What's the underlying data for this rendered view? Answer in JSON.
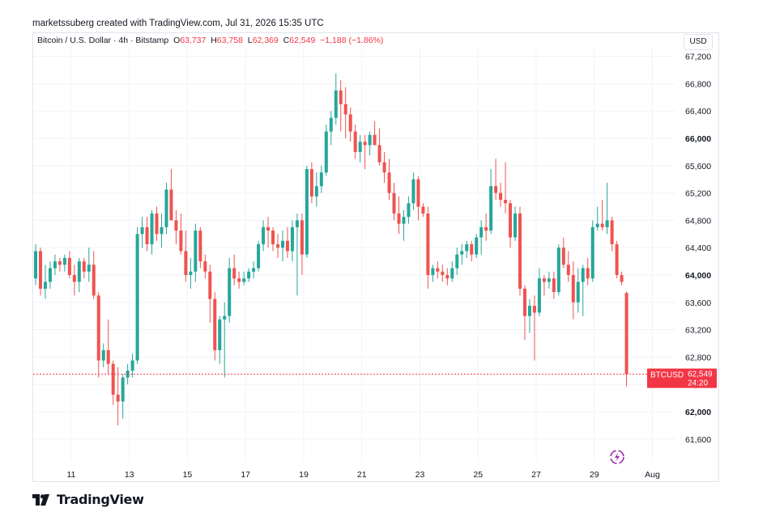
{
  "credit_line": "marketssuberg created with TradingView.com, Jul 31, 2026 15:35 UTC",
  "legend": {
    "symbol_desc": "Bitcoin / U.S. Dollar · 4h · Bitstamp",
    "o_label": "O",
    "o_value": "63,737",
    "h_label": "H",
    "h_value": "63,758",
    "l_label": "L",
    "l_value": "62,369",
    "c_label": "C",
    "c_value": "62,549",
    "change": "−1,188 (−1.86%)"
  },
  "currency_button": "USD",
  "brand": {
    "name": "TradingView",
    "icon": "tradingview-logo-icon"
  },
  "colors": {
    "up": "#26a69a",
    "down": "#ef5350",
    "price_tag": "#f23645",
    "grid": "#f0f3fa",
    "text": "#131722"
  },
  "price_tag": {
    "symbol": "BTCUSD",
    "price": "62,549",
    "countdown": "24:20"
  },
  "chart_data": {
    "type": "candlestick",
    "title": "Bitcoin / U.S. Dollar · 4h · Bitstamp",
    "ylim": [
      61300,
      67300
    ],
    "y_ticks": [
      "61,600",
      "62,000",
      "62,400",
      "62,800",
      "63,200",
      "63,600",
      "64,000",
      "64,400",
      "64,800",
      "65,200",
      "65,600",
      "66,000",
      "66,400",
      "66,800",
      "67,200"
    ],
    "y_tick_values": [
      61600,
      62000,
      62400,
      62800,
      63200,
      63600,
      64000,
      64400,
      64800,
      65200,
      65600,
      66000,
      66400,
      66800,
      67200
    ],
    "x_ticks": [
      "11",
      "13",
      "15",
      "17",
      "19",
      "21",
      "23",
      "25",
      "27",
      "29",
      "Aug"
    ],
    "x_tick_candle_index": [
      4,
      16,
      28,
      40,
      52,
      64,
      76,
      88,
      100,
      112,
      124
    ],
    "last_price": 62549,
    "grid": true,
    "candles": [
      {
        "o": 63950,
        "h": 64450,
        "l": 63850,
        "c": 64350
      },
      {
        "o": 64350,
        "h": 64400,
        "l": 63700,
        "c": 63800
      },
      {
        "o": 63800,
        "h": 64150,
        "l": 63650,
        "c": 63900
      },
      {
        "o": 63900,
        "h": 64200,
        "l": 63800,
        "c": 64100
      },
      {
        "o": 64100,
        "h": 64300,
        "l": 64000,
        "c": 64200
      },
      {
        "o": 64200,
        "h": 64250,
        "l": 64050,
        "c": 64150
      },
      {
        "o": 64150,
        "h": 64300,
        "l": 64050,
        "c": 64250
      },
      {
        "o": 64250,
        "h": 64350,
        "l": 63950,
        "c": 64000
      },
      {
        "o": 64000,
        "h": 64150,
        "l": 63700,
        "c": 63900
      },
      {
        "o": 63900,
        "h": 64250,
        "l": 63750,
        "c": 64200
      },
      {
        "o": 64200,
        "h": 64250,
        "l": 63950,
        "c": 64050
      },
      {
        "o": 64050,
        "h": 64400,
        "l": 63900,
        "c": 64150
      },
      {
        "o": 64150,
        "h": 64350,
        "l": 63650,
        "c": 63700
      },
      {
        "o": 63700,
        "h": 63750,
        "l": 62500,
        "c": 62750
      },
      {
        "o": 62750,
        "h": 63000,
        "l": 62650,
        "c": 62900
      },
      {
        "o": 62900,
        "h": 63350,
        "l": 62550,
        "c": 62700
      },
      {
        "o": 62700,
        "h": 62750,
        "l": 62100,
        "c": 62250
      },
      {
        "o": 62250,
        "h": 62650,
        "l": 61800,
        "c": 62150
      },
      {
        "o": 62150,
        "h": 62550,
        "l": 61900,
        "c": 62500
      },
      {
        "o": 62500,
        "h": 62700,
        "l": 62400,
        "c": 62600
      },
      {
        "o": 62600,
        "h": 62850,
        "l": 62500,
        "c": 62750
      },
      {
        "o": 62750,
        "h": 64700,
        "l": 62700,
        "c": 64600
      },
      {
        "o": 64600,
        "h": 64850,
        "l": 64400,
        "c": 64700
      },
      {
        "o": 64700,
        "h": 64850,
        "l": 64350,
        "c": 64450
      },
      {
        "o": 64450,
        "h": 64950,
        "l": 64300,
        "c": 64900
      },
      {
        "o": 64900,
        "h": 65000,
        "l": 64500,
        "c": 64600
      },
      {
        "o": 64600,
        "h": 64900,
        "l": 64400,
        "c": 64700
      },
      {
        "o": 64700,
        "h": 65350,
        "l": 64600,
        "c": 65250
      },
      {
        "o": 65250,
        "h": 65550,
        "l": 64800,
        "c": 64800
      },
      {
        "o": 64800,
        "h": 64950,
        "l": 64450,
        "c": 64650
      },
      {
        "o": 64650,
        "h": 64900,
        "l": 64300,
        "c": 64350
      },
      {
        "o": 64350,
        "h": 64650,
        "l": 63900,
        "c": 64000
      },
      {
        "o": 64000,
        "h": 64250,
        "l": 63800,
        "c": 64050
      },
      {
        "o": 64050,
        "h": 64750,
        "l": 63900,
        "c": 64650
      },
      {
        "o": 64650,
        "h": 64700,
        "l": 64100,
        "c": 64200
      },
      {
        "o": 64200,
        "h": 64300,
        "l": 63950,
        "c": 64050
      },
      {
        "o": 64050,
        "h": 64150,
        "l": 63300,
        "c": 63650
      },
      {
        "o": 63650,
        "h": 63750,
        "l": 62750,
        "c": 62900
      },
      {
        "o": 62900,
        "h": 63400,
        "l": 62700,
        "c": 63350
      },
      {
        "o": 63350,
        "h": 63600,
        "l": 62500,
        "c": 63400
      },
      {
        "o": 63400,
        "h": 64250,
        "l": 63300,
        "c": 64100
      },
      {
        "o": 64100,
        "h": 64300,
        "l": 63850,
        "c": 63950
      },
      {
        "o": 63950,
        "h": 64050,
        "l": 63800,
        "c": 63900
      },
      {
        "o": 63900,
        "h": 64050,
        "l": 63850,
        "c": 63950
      },
      {
        "o": 63950,
        "h": 64100,
        "l": 63900,
        "c": 64050
      },
      {
        "o": 64050,
        "h": 64200,
        "l": 63950,
        "c": 64100
      },
      {
        "o": 64100,
        "h": 64500,
        "l": 64050,
        "c": 64450
      },
      {
        "o": 64450,
        "h": 64800,
        "l": 64350,
        "c": 64700
      },
      {
        "o": 64700,
        "h": 64850,
        "l": 64400,
        "c": 64650
      },
      {
        "o": 64650,
        "h": 64700,
        "l": 64350,
        "c": 64450
      },
      {
        "o": 64450,
        "h": 64600,
        "l": 64250,
        "c": 64400
      },
      {
        "o": 64400,
        "h": 64650,
        "l": 64200,
        "c": 64500
      },
      {
        "o": 64500,
        "h": 64700,
        "l": 64250,
        "c": 64350
      },
      {
        "o": 64350,
        "h": 64800,
        "l": 64200,
        "c": 64700
      },
      {
        "o": 64700,
        "h": 64900,
        "l": 63700,
        "c": 64800
      },
      {
        "o": 64800,
        "h": 64900,
        "l": 64000,
        "c": 64300
      },
      {
        "o": 64300,
        "h": 65600,
        "l": 64250,
        "c": 65550
      },
      {
        "o": 65550,
        "h": 65650,
        "l": 65050,
        "c": 65150
      },
      {
        "o": 65150,
        "h": 65500,
        "l": 65000,
        "c": 65300
      },
      {
        "o": 65300,
        "h": 65600,
        "l": 65200,
        "c": 65500
      },
      {
        "o": 65500,
        "h": 66200,
        "l": 65450,
        "c": 66100
      },
      {
        "o": 66100,
        "h": 66400,
        "l": 65900,
        "c": 66300
      },
      {
        "o": 66300,
        "h": 66950,
        "l": 66200,
        "c": 66700
      },
      {
        "o": 66700,
        "h": 66850,
        "l": 66100,
        "c": 66500
      },
      {
        "o": 66500,
        "h": 66750,
        "l": 66000,
        "c": 66350
      },
      {
        "o": 66350,
        "h": 66450,
        "l": 65950,
        "c": 66100
      },
      {
        "o": 66100,
        "h": 66200,
        "l": 65700,
        "c": 65800
      },
      {
        "o": 65800,
        "h": 66050,
        "l": 65650,
        "c": 65950
      },
      {
        "o": 65950,
        "h": 66050,
        "l": 65550,
        "c": 65900
      },
      {
        "o": 65900,
        "h": 66100,
        "l": 65750,
        "c": 66050
      },
      {
        "o": 66050,
        "h": 66250,
        "l": 65900,
        "c": 65900
      },
      {
        "o": 65900,
        "h": 66150,
        "l": 65600,
        "c": 65650
      },
      {
        "o": 65650,
        "h": 65800,
        "l": 65350,
        "c": 65500
      },
      {
        "o": 65500,
        "h": 65700,
        "l": 65100,
        "c": 65200
      },
      {
        "o": 65200,
        "h": 65350,
        "l": 64800,
        "c": 64900
      },
      {
        "o": 64900,
        "h": 65150,
        "l": 64600,
        "c": 64750
      },
      {
        "o": 64750,
        "h": 64950,
        "l": 64500,
        "c": 64850
      },
      {
        "o": 64850,
        "h": 65150,
        "l": 64750,
        "c": 65050
      },
      {
        "o": 65050,
        "h": 65500,
        "l": 64950,
        "c": 65400
      },
      {
        "o": 65400,
        "h": 65450,
        "l": 64800,
        "c": 65000
      },
      {
        "o": 65000,
        "h": 65050,
        "l": 64850,
        "c": 64900
      },
      {
        "o": 64900,
        "h": 65000,
        "l": 63800,
        "c": 64000
      },
      {
        "o": 64000,
        "h": 64150,
        "l": 63900,
        "c": 64100
      },
      {
        "o": 64100,
        "h": 64200,
        "l": 63950,
        "c": 64050
      },
      {
        "o": 64050,
        "h": 64150,
        "l": 63900,
        "c": 64000
      },
      {
        "o": 64000,
        "h": 64100,
        "l": 63850,
        "c": 63950
      },
      {
        "o": 63950,
        "h": 64200,
        "l": 63900,
        "c": 64100
      },
      {
        "o": 64100,
        "h": 64400,
        "l": 64000,
        "c": 64300
      },
      {
        "o": 64300,
        "h": 64450,
        "l": 64150,
        "c": 64350
      },
      {
        "o": 64350,
        "h": 64500,
        "l": 64250,
        "c": 64450
      },
      {
        "o": 64450,
        "h": 64500,
        "l": 64200,
        "c": 64300
      },
      {
        "o": 64300,
        "h": 64600,
        "l": 64250,
        "c": 64550
      },
      {
        "o": 64550,
        "h": 64800,
        "l": 64300,
        "c": 64700
      },
      {
        "o": 64700,
        "h": 64900,
        "l": 64500,
        "c": 64650
      },
      {
        "o": 64650,
        "h": 65550,
        "l": 64600,
        "c": 65300
      },
      {
        "o": 65300,
        "h": 65700,
        "l": 65100,
        "c": 65200
      },
      {
        "o": 65200,
        "h": 65350,
        "l": 65000,
        "c": 65100
      },
      {
        "o": 65100,
        "h": 65650,
        "l": 64900,
        "c": 65050
      },
      {
        "o": 65050,
        "h": 65100,
        "l": 64400,
        "c": 64550
      },
      {
        "o": 64550,
        "h": 65000,
        "l": 64500,
        "c": 64900
      },
      {
        "o": 64900,
        "h": 65000,
        "l": 63700,
        "c": 63800
      },
      {
        "o": 63800,
        "h": 63850,
        "l": 63050,
        "c": 63400
      },
      {
        "o": 63400,
        "h": 63650,
        "l": 63150,
        "c": 63550
      },
      {
        "o": 63550,
        "h": 63700,
        "l": 62750,
        "c": 63450
      },
      {
        "o": 63450,
        "h": 64100,
        "l": 63400,
        "c": 63950
      },
      {
        "o": 63950,
        "h": 64000,
        "l": 63700,
        "c": 63900
      },
      {
        "o": 63900,
        "h": 64050,
        "l": 63800,
        "c": 63950
      },
      {
        "o": 63950,
        "h": 64050,
        "l": 63650,
        "c": 63750
      },
      {
        "o": 63750,
        "h": 64450,
        "l": 63700,
        "c": 64400
      },
      {
        "o": 64400,
        "h": 64550,
        "l": 64100,
        "c": 64150
      },
      {
        "o": 64150,
        "h": 64350,
        "l": 63900,
        "c": 64000
      },
      {
        "o": 64000,
        "h": 64200,
        "l": 63350,
        "c": 63600
      },
      {
        "o": 63600,
        "h": 64100,
        "l": 63450,
        "c": 63900
      },
      {
        "o": 63900,
        "h": 64150,
        "l": 63400,
        "c": 64100
      },
      {
        "o": 64100,
        "h": 64250,
        "l": 63850,
        "c": 63950
      },
      {
        "o": 63950,
        "h": 64800,
        "l": 63900,
        "c": 64700
      },
      {
        "o": 64700,
        "h": 65000,
        "l": 64650,
        "c": 64750
      },
      {
        "o": 64750,
        "h": 65100,
        "l": 64650,
        "c": 64700
      },
      {
        "o": 64700,
        "h": 65350,
        "l": 64600,
        "c": 64800
      },
      {
        "o": 64800,
        "h": 64850,
        "l": 64350,
        "c": 64450
      },
      {
        "o": 64450,
        "h": 64500,
        "l": 63950,
        "c": 64000
      },
      {
        "o": 64000,
        "h": 64050,
        "l": 63850,
        "c": 63900
      },
      {
        "o": 63737,
        "h": 63758,
        "l": 62369,
        "c": 62549
      }
    ]
  }
}
